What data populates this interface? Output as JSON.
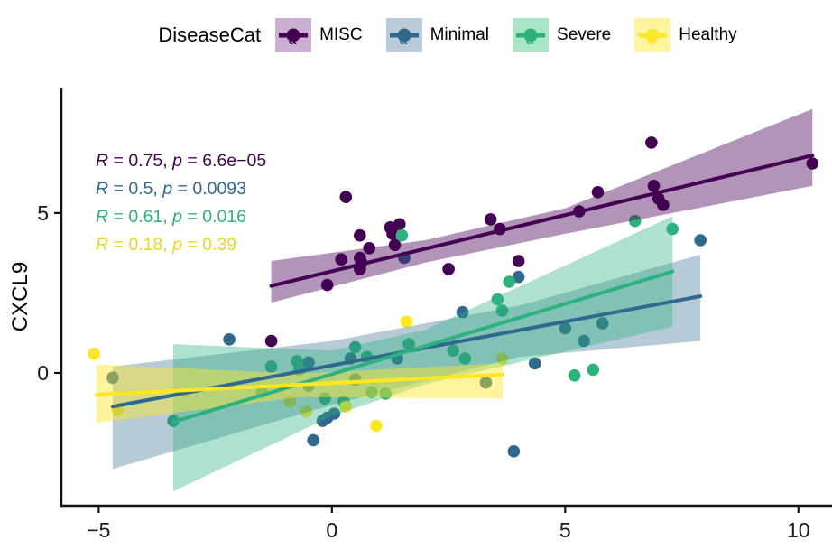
{
  "legend": {
    "title": "DiseaseCat",
    "items": [
      {
        "label": "MISC",
        "color": "#440154",
        "key_fill": "#c9afd2"
      },
      {
        "label": "Minimal",
        "color": "#31688E",
        "key_fill": "#b9cbd8"
      },
      {
        "label": "Severe",
        "color": "#2DB27D",
        "key_fill": "#a9e5c9"
      },
      {
        "label": "Healthy",
        "color": "#FDE725",
        "key_fill": "#fdf49e"
      }
    ]
  },
  "annotations": [
    {
      "series": "MISC",
      "R": "0.75",
      "p": "6.6e−05",
      "text": "R = 0.75, p = 6.6e−05",
      "color": "#440154"
    },
    {
      "series": "Minimal",
      "R": "0.5",
      "p": "0.0093",
      "text": "R = 0.5, p = 0.0093",
      "color": "#31688E"
    },
    {
      "series": "Severe",
      "R": "0.61",
      "p": "0.016",
      "text": "R = 0.61, p = 0.016",
      "color": "#2DB27D"
    },
    {
      "series": "Healthy",
      "R": "0.18",
      "p": "0.39",
      "text": "R = 0.18, p = 0.39",
      "color": "#E8D820"
    }
  ],
  "axes": {
    "x": {
      "tick_values": [
        -5,
        0,
        5,
        10
      ],
      "tick_labels": [
        "−5",
        "0",
        "5",
        "10"
      ],
      "title": ""
    },
    "y": {
      "tick_values": [
        0,
        5
      ],
      "tick_labels": [
        "0",
        "5"
      ],
      "title": "CXCL9"
    }
  },
  "chart_data": {
    "type": "scatter",
    "title": "",
    "xlabel": "",
    "ylabel": "CXCL9",
    "legend_title": "DiseaseCat",
    "legend_position": "top",
    "grid": false,
    "xlim": [
      -5.8,
      10.72
    ],
    "ylim": [
      -4.15,
      8.92
    ],
    "series": [
      {
        "name": "MISC",
        "color": "#440154",
        "R": 0.75,
        "p": "6.6e-05",
        "points": [
          [
            -1.3,
            1.0
          ],
          [
            -0.1,
            2.75
          ],
          [
            0.2,
            3.55
          ],
          [
            0.3,
            5.5
          ],
          [
            0.6,
            4.3
          ],
          [
            0.6,
            3.6
          ],
          [
            0.63,
            3.45
          ],
          [
            0.6,
            3.25
          ],
          [
            0.8,
            3.9
          ],
          [
            1.25,
            4.55
          ],
          [
            1.45,
            4.65
          ],
          [
            1.3,
            4.35
          ],
          [
            1.35,
            4.0
          ],
          [
            2.5,
            3.25
          ],
          [
            3.4,
            4.8
          ],
          [
            3.6,
            4.5
          ],
          [
            4.0,
            3.5
          ],
          [
            5.3,
            5.05
          ],
          [
            5.7,
            5.65
          ],
          [
            6.85,
            7.2
          ],
          [
            6.9,
            5.85
          ],
          [
            7.0,
            5.45
          ],
          [
            7.1,
            5.25
          ],
          [
            10.3,
            6.55
          ]
        ],
        "regression": {
          "x0": -1.3,
          "y0": 2.72,
          "x1": 10.3,
          "y1": 6.8
        },
        "ribbon": {
          "upper": [
            [
              -1.3,
              3.5
            ],
            [
              2,
              4.15
            ],
            [
              5,
              5.15
            ],
            [
              10.3,
              8.25
            ]
          ],
          "lower": [
            [
              -1.3,
              2.2
            ],
            [
              2,
              3.45
            ],
            [
              5,
              4.35
            ],
            [
              10.3,
              5.85
            ]
          ]
        },
        "ribbon_opacity": 0.42
      },
      {
        "name": "Minimal",
        "color": "#31688E",
        "R": 0.5,
        "p": "0.0093",
        "points": [
          [
            -4.7,
            -0.15
          ],
          [
            -2.2,
            1.05
          ],
          [
            -0.5,
            0.33
          ],
          [
            -0.5,
            -0.4
          ],
          [
            -0.4,
            -2.1
          ],
          [
            -0.2,
            -1.5
          ],
          [
            -0.1,
            -1.4
          ],
          [
            0.05,
            -1.27
          ],
          [
            0.4,
            0.45
          ],
          [
            0.5,
            -0.2
          ],
          [
            1.4,
            0.45
          ],
          [
            1.55,
            3.6
          ],
          [
            2.8,
            1.9
          ],
          [
            3.3,
            -0.3
          ],
          [
            3.9,
            -2.45
          ],
          [
            4.0,
            3.0
          ],
          [
            4.35,
            0.3
          ],
          [
            5.0,
            1.4
          ],
          [
            5.4,
            1.0
          ],
          [
            5.8,
            1.55
          ],
          [
            7.9,
            4.15
          ]
        ],
        "regression": {
          "x0": -4.7,
          "y0": -1.05,
          "x1": 7.9,
          "y1": 2.4
        },
        "ribbon": {
          "upper": [
            [
              -4.7,
              0.2
            ],
            [
              0,
              1.0
            ],
            [
              4,
              2.1
            ],
            [
              7.9,
              3.7
            ]
          ],
          "lower": [
            [
              -4.7,
              -3.0
            ],
            [
              0,
              -1.0
            ],
            [
              4,
              0.5
            ],
            [
              7.9,
              1.0
            ]
          ]
        },
        "ribbon_opacity": 0.35
      },
      {
        "name": "Severe",
        "color": "#2DB27D",
        "R": 0.61,
        "p": "0.016",
        "points": [
          [
            -3.4,
            -1.5
          ],
          [
            -1.5,
            -0.6
          ],
          [
            -1.3,
            0.2
          ],
          [
            -0.75,
            0.37
          ],
          [
            -0.7,
            0.1
          ],
          [
            -0.15,
            -0.8
          ],
          [
            0.25,
            -0.9
          ],
          [
            0.5,
            0.8
          ],
          [
            0.75,
            0.5
          ],
          [
            0.85,
            -0.6
          ],
          [
            1.15,
            -0.65
          ],
          [
            1.5,
            4.3
          ],
          [
            1.65,
            0.9
          ],
          [
            2.6,
            0.7
          ],
          [
            2.85,
            0.45
          ],
          [
            3.55,
            2.3
          ],
          [
            3.65,
            1.95
          ],
          [
            3.8,
            2.85
          ],
          [
            5.2,
            -0.08
          ],
          [
            5.6,
            0.1
          ],
          [
            6.5,
            4.75
          ],
          [
            7.3,
            4.5
          ]
        ],
        "regression": {
          "x0": -3.4,
          "y0": -1.53,
          "x1": 7.3,
          "y1": 3.17
        },
        "ribbon": {
          "upper": [
            [
              -3.4,
              0.9
            ],
            [
              0,
              0.7
            ],
            [
              2,
              1.35
            ],
            [
              7.3,
              4.9
            ]
          ],
          "lower": [
            [
              -3.4,
              -3.7
            ],
            [
              0,
              -1.35
            ],
            [
              2,
              -0.35
            ],
            [
              7.3,
              1.45
            ]
          ]
        },
        "ribbon_opacity": 0.38
      },
      {
        "name": "Healthy",
        "color": "#FDE725",
        "R": 0.18,
        "p": "0.39",
        "points": [
          [
            -5.1,
            0.6
          ],
          [
            -4.6,
            -1.15
          ],
          [
            -0.9,
            -0.9
          ],
          [
            -0.55,
            -1.2
          ],
          [
            0.3,
            -1.05
          ],
          [
            0.95,
            -1.65
          ],
          [
            1.6,
            1.6
          ],
          [
            3.65,
            0.45
          ]
        ],
        "regression": {
          "x0": -5.05,
          "y0": -0.68,
          "x1": 3.66,
          "y1": -0.05
        },
        "ribbon": {
          "upper": [
            [
              -5.05,
              0.27
            ],
            [
              -0.7,
              -0.02
            ],
            [
              3.66,
              0.3
            ]
          ],
          "lower": [
            [
              -5.05,
              -1.56
            ],
            [
              -0.7,
              -0.75
            ],
            [
              3.66,
              -0.8
            ]
          ]
        },
        "ribbon_opacity": 0.45
      }
    ]
  }
}
